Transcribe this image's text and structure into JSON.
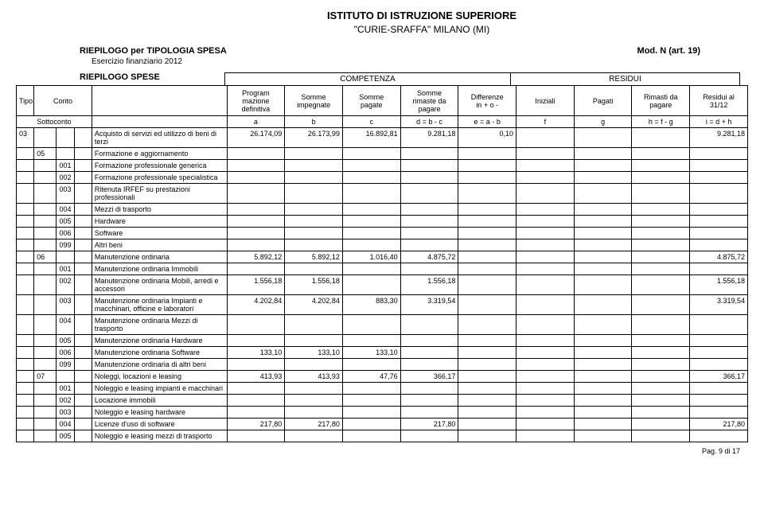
{
  "header": {
    "institution": "ISTITUTO DI ISTRUZIONE SUPERIORE",
    "school": "\"CURIE-SRAFFA\"    MILANO (MI)",
    "report_title": "RIEPILOGO per TIPOLOGIA SPESA",
    "mod": "Mod. N (art. 19)",
    "exercise": "Esercizio finanziario 2012",
    "riepilogo_spese": "RIEPILOGO SPESE",
    "competenza": "COMPETENZA",
    "residui": "RESIDUI"
  },
  "columns": {
    "tipo": "Tipo",
    "conto": "Conto",
    "programmazione": "Program\nmazione\ndefinitiva",
    "somme_impegnate": "Somme\nimpegnate",
    "somme_pagate": "Somme\npagate",
    "somme_rimaste": "Somme\nrimaste da\npagare",
    "differenze": "Differenze\nin + o -",
    "iniziali": "Iniziali",
    "pagati": "Pagati",
    "rimasti": "Rimasti da\npagare",
    "residui_al": "Residui al\n31/12"
  },
  "formula_row": {
    "sottoconto": "Sottoconto",
    "a": "a",
    "b": "b",
    "c": "c",
    "d": "d = b - c",
    "e": "e = a - b",
    "f": "f",
    "g": "g",
    "h": "h = f - g",
    "i": "i = d + h"
  },
  "rows": [
    {
      "c0": "03",
      "c1": "",
      "c2": "",
      "c3": "",
      "desc": "Acquisto di servizi ed utilizzo di beni di terzi",
      "a": "26.174,09",
      "b": "26.173,99",
      "c": "16.892,81",
      "d": "9.281,18",
      "e": "0,10",
      "f": "",
      "g": "",
      "h": "",
      "i": "9.281,18"
    },
    {
      "c0": "",
      "c1": "05",
      "c2": "",
      "c3": "",
      "desc": "Formazione e aggiornamento",
      "a": "",
      "b": "",
      "c": "",
      "d": "",
      "e": "",
      "f": "",
      "g": "",
      "h": "",
      "i": ""
    },
    {
      "c0": "",
      "c1": "",
      "c2": "001",
      "c3": "",
      "desc": "Formazione professionale generica",
      "a": "",
      "b": "",
      "c": "",
      "d": "",
      "e": "",
      "f": "",
      "g": "",
      "h": "",
      "i": ""
    },
    {
      "c0": "",
      "c1": "",
      "c2": "002",
      "c3": "",
      "desc": "Formazione professionale specialistica",
      "a": "",
      "b": "",
      "c": "",
      "d": "",
      "e": "",
      "f": "",
      "g": "",
      "h": "",
      "i": ""
    },
    {
      "c0": "",
      "c1": "",
      "c2": "003",
      "c3": "",
      "desc": "Ritenuta IRFEF su prestazioni professionali",
      "a": "",
      "b": "",
      "c": "",
      "d": "",
      "e": "",
      "f": "",
      "g": "",
      "h": "",
      "i": ""
    },
    {
      "c0": "",
      "c1": "",
      "c2": "004",
      "c3": "",
      "desc": "Mezzi di trasporto",
      "a": "",
      "b": "",
      "c": "",
      "d": "",
      "e": "",
      "f": "",
      "g": "",
      "h": "",
      "i": ""
    },
    {
      "c0": "",
      "c1": "",
      "c2": "005",
      "c3": "",
      "desc": "Hardware",
      "a": "",
      "b": "",
      "c": "",
      "d": "",
      "e": "",
      "f": "",
      "g": "",
      "h": "",
      "i": ""
    },
    {
      "c0": "",
      "c1": "",
      "c2": "006",
      "c3": "",
      "desc": "Software",
      "a": "",
      "b": "",
      "c": "",
      "d": "",
      "e": "",
      "f": "",
      "g": "",
      "h": "",
      "i": ""
    },
    {
      "c0": "",
      "c1": "",
      "c2": "099",
      "c3": "",
      "desc": "Altri beni",
      "a": "",
      "b": "",
      "c": "",
      "d": "",
      "e": "",
      "f": "",
      "g": "",
      "h": "",
      "i": ""
    },
    {
      "c0": "",
      "c1": "06",
      "c2": "",
      "c3": "",
      "desc": "Manutenzione ordinaria",
      "a": "5.892,12",
      "b": "5.892,12",
      "c": "1.016,40",
      "d": "4.875,72",
      "e": "",
      "f": "",
      "g": "",
      "h": "",
      "i": "4.875,72"
    },
    {
      "c0": "",
      "c1": "",
      "c2": "001",
      "c3": "",
      "desc": "Manutenzione ordinaria Immobili",
      "a": "",
      "b": "",
      "c": "",
      "d": "",
      "e": "",
      "f": "",
      "g": "",
      "h": "",
      "i": ""
    },
    {
      "c0": "",
      "c1": "",
      "c2": "002",
      "c3": "",
      "desc": "Manutenzione ordinaria Mobili, arredi e accessori",
      "a": "1.556,18",
      "b": "1.556,18",
      "c": "",
      "d": "1.556,18",
      "e": "",
      "f": "",
      "g": "",
      "h": "",
      "i": "1.556,18"
    },
    {
      "c0": "",
      "c1": "",
      "c2": "003",
      "c3": "",
      "desc": "Manutenzione ordinaria Impianti e macchinari, officine e laboratori",
      "a": "4.202,84",
      "b": "4.202,84",
      "c": "883,30",
      "d": "3.319,54",
      "e": "",
      "f": "",
      "g": "",
      "h": "",
      "i": "3.319,54"
    },
    {
      "c0": "",
      "c1": "",
      "c2": "004",
      "c3": "",
      "desc": "Manutenzione ordinaria Mezzi di trasporto",
      "a": "",
      "b": "",
      "c": "",
      "d": "",
      "e": "",
      "f": "",
      "g": "",
      "h": "",
      "i": ""
    },
    {
      "c0": "",
      "c1": "",
      "c2": "005",
      "c3": "",
      "desc": "Manutenzione ordinaria Hardware",
      "a": "",
      "b": "",
      "c": "",
      "d": "",
      "e": "",
      "f": "",
      "g": "",
      "h": "",
      "i": ""
    },
    {
      "c0": "",
      "c1": "",
      "c2": "006",
      "c3": "",
      "desc": "Manutenzione ordinaria Software",
      "a": "133,10",
      "b": "133,10",
      "c": "133,10",
      "d": "",
      "e": "",
      "f": "",
      "g": "",
      "h": "",
      "i": ""
    },
    {
      "c0": "",
      "c1": "",
      "c2": "099",
      "c3": "",
      "desc": "Manutenzione ordinaria di altri beni",
      "a": "",
      "b": "",
      "c": "",
      "d": "",
      "e": "",
      "f": "",
      "g": "",
      "h": "",
      "i": ""
    },
    {
      "c0": "",
      "c1": "07",
      "c2": "",
      "c3": "",
      "desc": "Noleggi, locazioni e leasing",
      "a": "413,93",
      "b": "413,93",
      "c": "47,76",
      "d": "366,17",
      "e": "",
      "f": "",
      "g": "",
      "h": "",
      "i": "366,17"
    },
    {
      "c0": "",
      "c1": "",
      "c2": "001",
      "c3": "",
      "desc": "Noleggio e leasing impianti e macchinari",
      "a": "",
      "b": "",
      "c": "",
      "d": "",
      "e": "",
      "f": "",
      "g": "",
      "h": "",
      "i": ""
    },
    {
      "c0": "",
      "c1": "",
      "c2": "002",
      "c3": "",
      "desc": "Locazione immobili",
      "a": "",
      "b": "",
      "c": "",
      "d": "",
      "e": "",
      "f": "",
      "g": "",
      "h": "",
      "i": ""
    },
    {
      "c0": "",
      "c1": "",
      "c2": "003",
      "c3": "",
      "desc": "Noleggio e leasing hardware",
      "a": "",
      "b": "",
      "c": "",
      "d": "",
      "e": "",
      "f": "",
      "g": "",
      "h": "",
      "i": ""
    },
    {
      "c0": "",
      "c1": "",
      "c2": "004",
      "c3": "",
      "desc": "Licenze d'uso di software",
      "a": "217,80",
      "b": "217,80",
      "c": "",
      "d": "217,80",
      "e": "",
      "f": "",
      "g": "",
      "h": "",
      "i": "217,80"
    },
    {
      "c0": "",
      "c1": "",
      "c2": "005",
      "c3": "",
      "desc": "Noleggio e leasing mezzi di trasporto",
      "a": "",
      "b": "",
      "c": "",
      "d": "",
      "e": "",
      "f": "",
      "g": "",
      "h": "",
      "i": ""
    }
  ],
  "footer": "Pag. 9 di 17"
}
